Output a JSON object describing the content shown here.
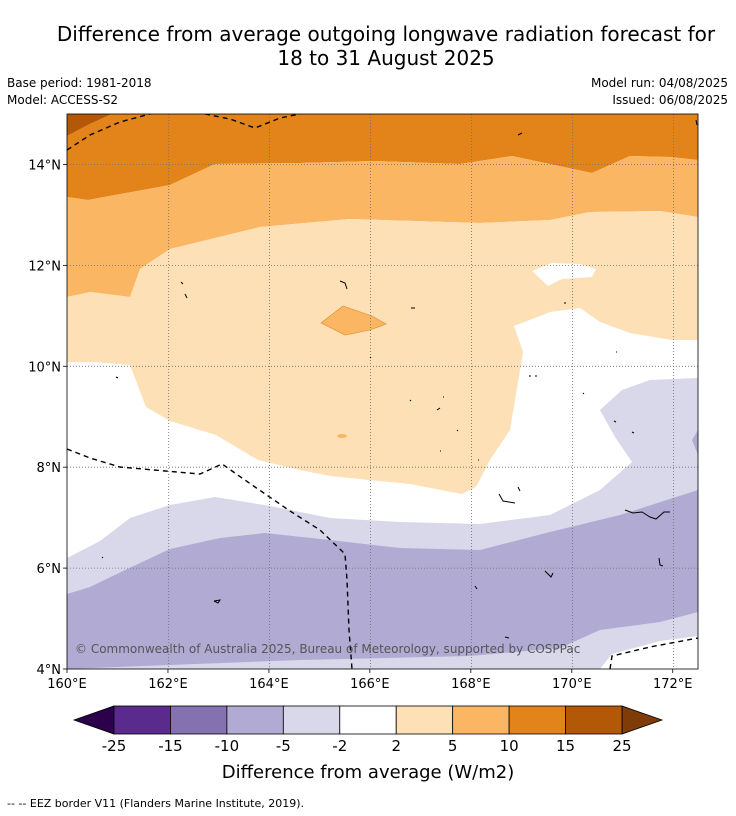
{
  "title_line1": "Difference from average outgoing longwave radiation forecast for",
  "title_line2": "18 to 31 August 2025",
  "base_period": "Base period: 1981-2018",
  "model": "Model: ACCESS-S2",
  "model_run": "Model run: 04/08/2025",
  "issued": "Issued: 06/08/2025",
  "copyright": "© Commonwealth of Australia 2025, Bureau of Meteorology, supported by COSPPac",
  "colorbar_title": "Difference from average (W/m2)",
  "border_note": "-- -- EEZ border V11 (Flanders Marine Institute, 2019).",
  "map": {
    "lon_range": [
      160,
      172.5
    ],
    "lat_range": [
      4,
      15
    ],
    "lon_ticks": [
      160,
      162,
      164,
      166,
      168,
      170,
      172
    ],
    "lon_labels": [
      "160°E",
      "162°E",
      "164°E",
      "166°E",
      "168°E",
      "170°E",
      "172°E"
    ],
    "lat_ticks": [
      4,
      6,
      8,
      10,
      12,
      14
    ],
    "lat_labels": [
      "4°N",
      "6°N",
      "8°N",
      "10°N",
      "12°N",
      "14°N"
    ]
  },
  "colorbar": {
    "bins": [
      {
        "color": "#5a2a8c"
      },
      {
        "color": "#8472b0"
      },
      {
        "color": "#b1abd3"
      },
      {
        "color": "#d8d8ea"
      },
      {
        "color": "#ffffff"
      },
      {
        "color": "#fde0b6"
      },
      {
        "color": "#fbb664"
      },
      {
        "color": "#e2841a"
      },
      {
        "color": "#b35806"
      }
    ],
    "low_extend_color": "#2d004b",
    "high_extend_color": "#7f3b08",
    "tick_labels": [
      "-25",
      "-15",
      "-10",
      "-5",
      "-2",
      "2",
      "5",
      "10",
      "15",
      "25"
    ]
  }
}
